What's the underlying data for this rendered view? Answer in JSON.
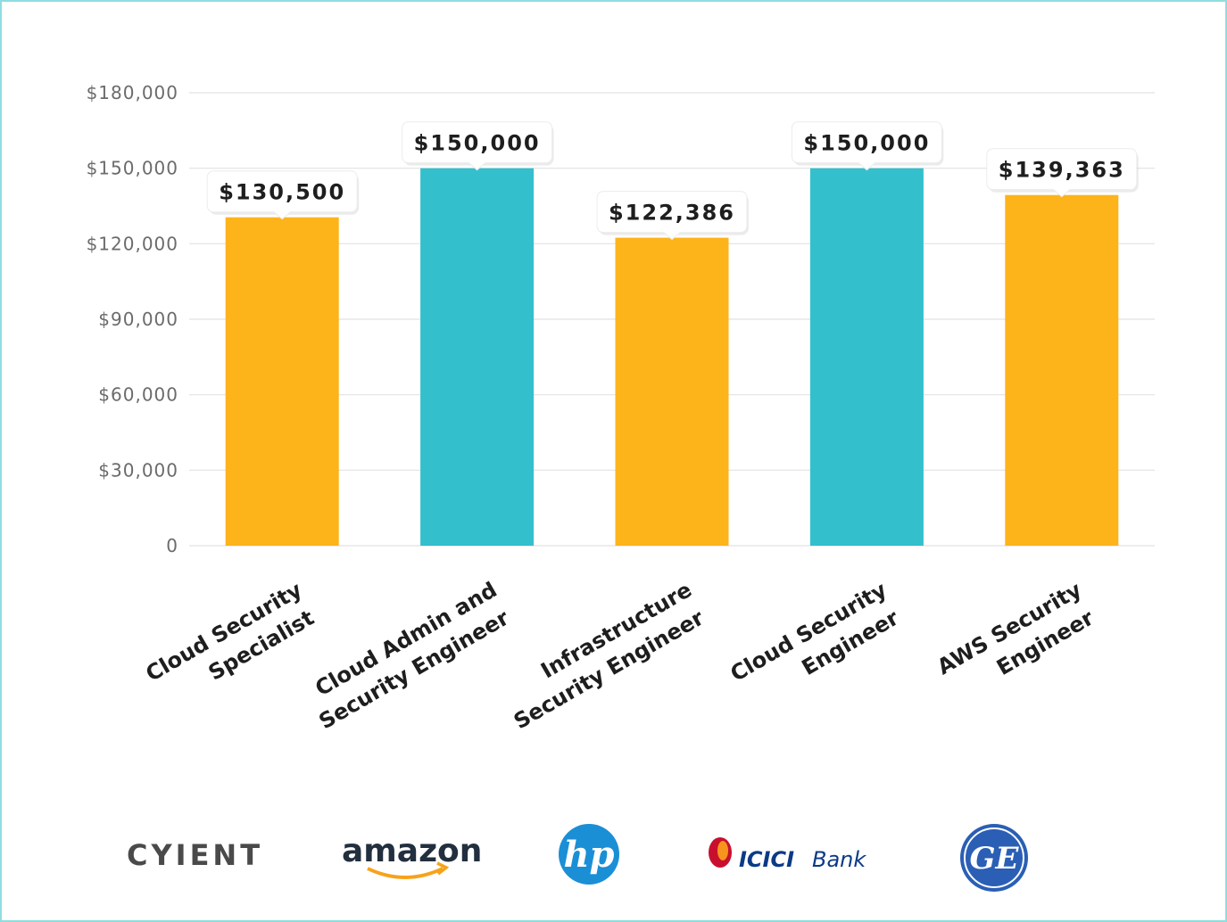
{
  "chart_data": {
    "type": "bar",
    "categories": [
      [
        "Cloud Security",
        "Specialist"
      ],
      [
        "Cloud Admin and",
        "Security Engineer"
      ],
      [
        "Infrastructure",
        "Security Engineer"
      ],
      [
        "Cloud Security",
        "Engineer"
      ],
      [
        "AWS Security",
        "Engineer"
      ]
    ],
    "values": [
      130500,
      150000,
      122386,
      150000,
      139363
    ],
    "value_labels": [
      "$130,500",
      "$150,000",
      "$122,386",
      "$150,000",
      "$139,363"
    ],
    "bar_colors": [
      "#fdb31a",
      "#34bfcd",
      "#fdb31a",
      "#34bfcd",
      "#fdb31a"
    ],
    "yticks": [
      0,
      30000,
      60000,
      90000,
      120000,
      150000,
      180000
    ],
    "ytick_labels": [
      "0",
      "$30,000",
      "$60,000",
      "$90,000",
      "$120,000",
      "$150,000",
      "$180,000"
    ],
    "ylim": [
      0,
      180000
    ],
    "grid": true,
    "title": "",
    "xlabel": "",
    "ylabel": ""
  },
  "logos": {
    "cyient": "CYIENT",
    "amazon": "amazon",
    "hp": "hp",
    "icici_main": "ICICI",
    "icici_bank": "Bank",
    "ge": "GE"
  },
  "colors": {
    "frame_border": "#8fdde0",
    "gridline": "#e2e2e2",
    "orange": "#fdb31a",
    "teal": "#34bfcd"
  }
}
